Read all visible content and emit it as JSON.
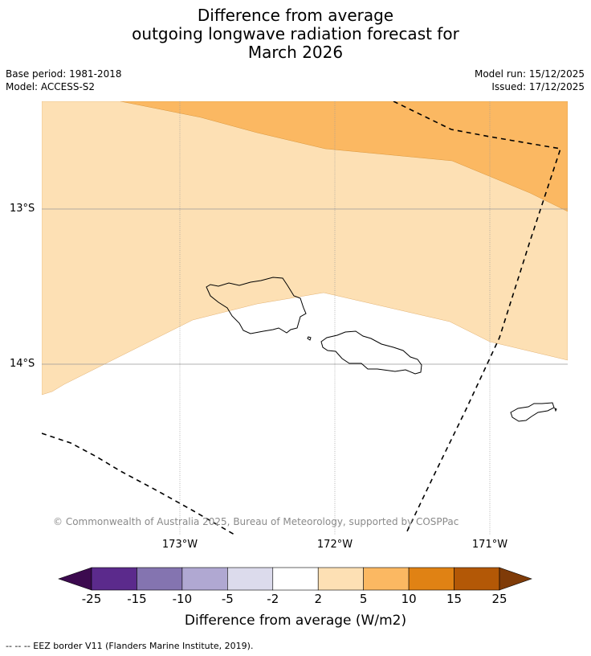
{
  "title": {
    "line1": "Difference from average",
    "line2": "outgoing longwave radiation forecast for",
    "line3": "March 2026"
  },
  "meta": {
    "base_period": "Base period: 1981-2018",
    "model": "Model: ACCESS-S2",
    "model_run": "Model run: 15/12/2025",
    "issued": "Issued: 17/12/2025"
  },
  "map": {
    "lat_labels": [
      "13°S",
      "14°S"
    ],
    "lon_labels": [
      "173°W",
      "172°W",
      "171°W"
    ],
    "copyright": "© Commonwealth of Australia 2025, Bureau of Meteorology, supported by COSPPac",
    "colors": {
      "band_2_5": "#fde0b4",
      "band_5_10": "#fbb862",
      "coast": "#000000",
      "grid": "#999999"
    }
  },
  "colorbar": {
    "title": "Difference from average (W/m2)",
    "ticks": [
      "-25",
      "-15",
      "-10",
      "-5",
      "-2",
      "2",
      "5",
      "10",
      "15",
      "25"
    ],
    "colors": [
      "#3c0a4f",
      "#5b2a8c",
      "#8474b0",
      "#b0a8d2",
      "#dcdbec",
      "#ffffff",
      "#fde0b4",
      "#fbb862",
      "#e08214",
      "#b35806",
      "#7f3b08"
    ]
  },
  "footer": "--  --  -- EEZ border V11 (Flanders Marine Institute, 2019)."
}
